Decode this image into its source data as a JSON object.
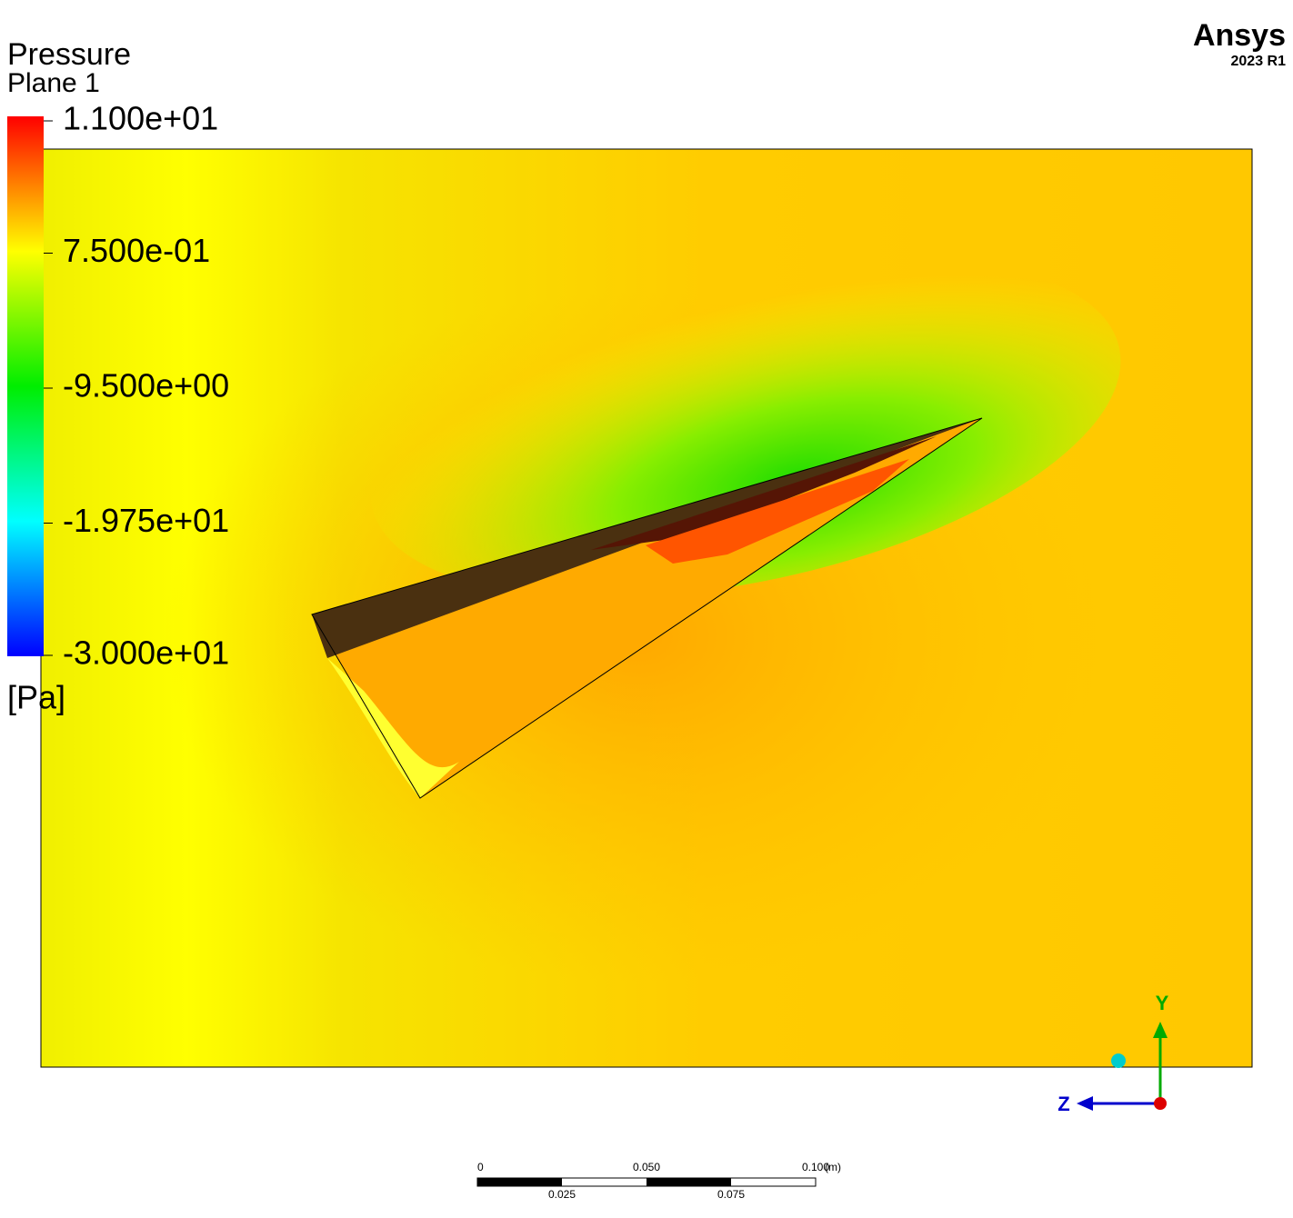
{
  "legend": {
    "title": "Pressure",
    "subtitle": "Plane 1",
    "labels": [
      "1.100e+01",
      "7.500e-01",
      "-9.500e+00",
      "-1.975e+01",
      "-3.000e+01"
    ],
    "unit": "[Pa]"
  },
  "brand": {
    "name": "Ansys",
    "version": "2023 R1"
  },
  "scale_bar": {
    "top_labels": [
      "0",
      "0.050",
      "0.100"
    ],
    "unit": "(m)",
    "bottom_labels": [
      "0.025",
      "0.075"
    ]
  },
  "axes": {
    "y": "Y",
    "z": "Z"
  }
}
